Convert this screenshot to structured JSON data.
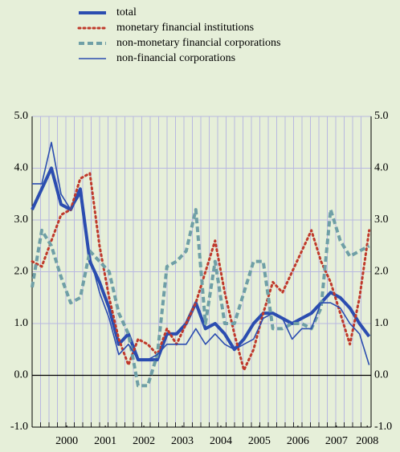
{
  "chart_data": {
    "type": "line",
    "legend": "top-left",
    "grid": true,
    "x": [
      1999.6,
      1999.85,
      2000.1,
      2000.35,
      2000.6,
      2000.85,
      2001.1,
      2001.35,
      2001.6,
      2001.85,
      2002.1,
      2002.35,
      2002.6,
      2002.85,
      2003.1,
      2003.35,
      2003.6,
      2003.85,
      2004.1,
      2004.35,
      2004.6,
      2004.85,
      2005.1,
      2005.35,
      2005.6,
      2005.85,
      2006.1,
      2006.35,
      2006.6,
      2006.85,
      2007.1,
      2007.35,
      2007.6,
      2007.85,
      2008.1,
      2008.35
    ],
    "xlim": [
      1999.6,
      2008.4
    ],
    "xticks": [
      {
        "value": 2000.5,
        "label": "2000"
      },
      {
        "value": 2001.5,
        "label": "2001"
      },
      {
        "value": 2002.5,
        "label": "2002"
      },
      {
        "value": 2003.5,
        "label": "2003"
      },
      {
        "value": 2004.5,
        "label": "2004"
      },
      {
        "value": 2005.5,
        "label": "2005"
      },
      {
        "value": 2006.5,
        "label": "2006"
      },
      {
        "value": 2007.5,
        "label": "2007"
      },
      {
        "value": 2008.3,
        "label": "2008"
      }
    ],
    "ylim": [
      -1,
      5
    ],
    "yticks": [
      {
        "value": -1,
        "label": "-1.0"
      },
      {
        "value": 0,
        "label": "0.0"
      },
      {
        "value": 1,
        "label": "1.0"
      },
      {
        "value": 2,
        "label": "2.0"
      },
      {
        "value": 3,
        "label": "3.0"
      },
      {
        "value": 4,
        "label": "4.0"
      },
      {
        "value": 5,
        "label": "5.0"
      }
    ],
    "y2lim": [
      -1,
      5
    ],
    "y2ticks": [
      {
        "value": -1,
        "label": "-1.0"
      },
      {
        "value": 0,
        "label": "0.0"
      },
      {
        "value": 1,
        "label": "1.0"
      },
      {
        "value": 2,
        "label": "2.0"
      },
      {
        "value": 3,
        "label": "3.0"
      },
      {
        "value": 4,
        "label": "4.0"
      },
      {
        "value": 5,
        "label": "5.0"
      }
    ],
    "series": [
      {
        "name": "total",
        "color": "#2b4db0",
        "style": "solid",
        "width": 4,
        "values": [
          3.2,
          3.6,
          4.0,
          3.3,
          3.2,
          3.6,
          2.2,
          1.8,
          1.3,
          0.6,
          0.8,
          0.3,
          0.3,
          0.3,
          0.8,
          0.8,
          1.0,
          1.4,
          0.9,
          1.0,
          0.8,
          0.5,
          0.7,
          1.0,
          1.2,
          1.2,
          1.1,
          1.0,
          1.1,
          1.2,
          1.4,
          1.6,
          1.5,
          1.3,
          1.0,
          0.75
        ]
      },
      {
        "name": "monetary financial institutions",
        "color": "#c0392b",
        "style": "dotted",
        "width": 3,
        "values": [
          2.2,
          2.1,
          2.6,
          3.1,
          3.2,
          3.8,
          3.9,
          2.5,
          1.5,
          0.7,
          0.2,
          0.7,
          0.6,
          0.4,
          0.9,
          0.6,
          1.0,
          1.4,
          2.0,
          2.6,
          1.6,
          0.8,
          0.1,
          0.5,
          1.2,
          1.8,
          1.6,
          2.0,
          2.4,
          2.8,
          2.2,
          1.8,
          1.2,
          0.6,
          1.5,
          2.8
        ]
      },
      {
        "name": "non-monetary financial corporations",
        "color": "#6f9fa6",
        "style": "dashed",
        "width": 4,
        "values": [
          1.7,
          2.8,
          2.5,
          1.9,
          1.4,
          1.5,
          2.4,
          2.2,
          2.0,
          1.2,
          0.8,
          -0.2,
          -0.2,
          0.4,
          2.1,
          2.2,
          2.4,
          3.2,
          1.0,
          2.2,
          1.0,
          1.0,
          1.6,
          2.2,
          2.2,
          0.9,
          0.9,
          1.0,
          1.0,
          0.9,
          1.3,
          3.2,
          2.6,
          2.3,
          2.4,
          2.5
        ]
      },
      {
        "name": "non-financial corporations",
        "color": "#2b4db0",
        "style": "solid",
        "width": 1.6,
        "values": [
          3.7,
          3.7,
          4.5,
          3.5,
          3.2,
          3.5,
          2.3,
          1.6,
          1.1,
          0.4,
          0.6,
          0.3,
          0.3,
          0.4,
          0.6,
          0.6,
          0.6,
          0.9,
          0.6,
          0.8,
          0.6,
          0.5,
          0.6,
          0.7,
          1.1,
          1.2,
          1.1,
          0.7,
          0.9,
          0.9,
          1.4,
          1.4,
          1.3,
          1.0,
          0.8,
          0.2
        ]
      }
    ]
  }
}
